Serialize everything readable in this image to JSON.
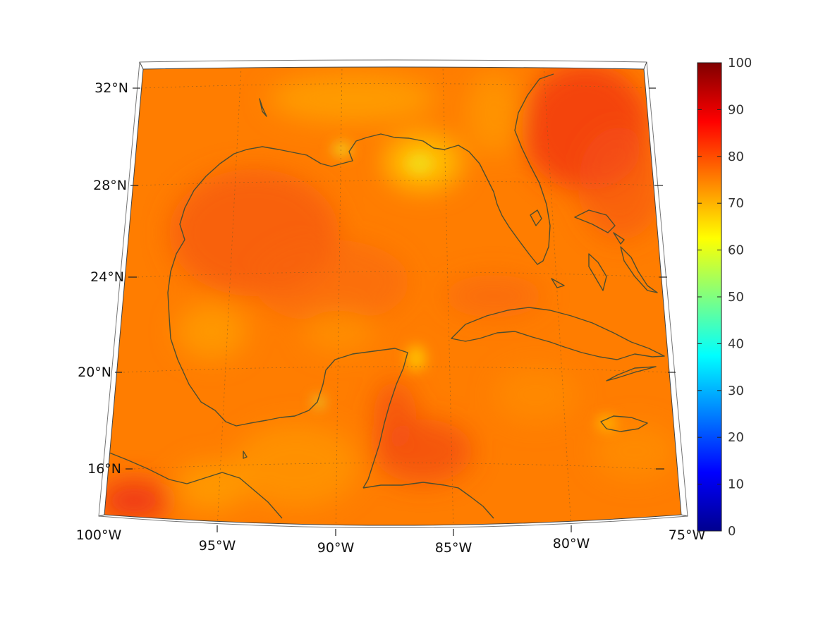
{
  "map": {
    "projection": "conic",
    "lon_range": [
      -100,
      -75
    ],
    "lat_range": [
      14,
      33
    ],
    "grid_style": "dotted",
    "colormap": "jet",
    "field_colors": {
      "base": "#ff7a00",
      "warm": "#f44a16",
      "cool": "#ffb300",
      "coast": "#4d4d2f"
    },
    "longitude_ticks": [
      {
        "value": -100,
        "label": "100°W"
      },
      {
        "value": -95,
        "label": "95°W"
      },
      {
        "value": -90,
        "label": "90°W"
      },
      {
        "value": -85,
        "label": "85°W"
      },
      {
        "value": -80,
        "label": "80°W"
      },
      {
        "value": -75,
        "label": "75°W"
      }
    ],
    "latitude_ticks": [
      {
        "value": 16,
        "label": "16°N"
      },
      {
        "value": 20,
        "label": "20°N"
      },
      {
        "value": 24,
        "label": "24°N"
      },
      {
        "value": 28,
        "label": "28°N"
      },
      {
        "value": 32,
        "label": "32°N"
      }
    ]
  },
  "colorbar": {
    "min": 0,
    "max": 100,
    "ticks": [
      {
        "value": 0,
        "label": "0"
      },
      {
        "value": 10,
        "label": "10"
      },
      {
        "value": 20,
        "label": "20"
      },
      {
        "value": 30,
        "label": "30"
      },
      {
        "value": 40,
        "label": "40"
      },
      {
        "value": 50,
        "label": "50"
      },
      {
        "value": 60,
        "label": "60"
      },
      {
        "value": 70,
        "label": "70"
      },
      {
        "value": 80,
        "label": "80"
      },
      {
        "value": 90,
        "label": "90"
      },
      {
        "value": 100,
        "label": "100"
      }
    ],
    "stops": [
      "#00008f",
      "#0000ff",
      "#0080ff",
      "#00ffff",
      "#80ff80",
      "#ffff00",
      "#ff8000",
      "#ff0000",
      "#800000"
    ]
  }
}
